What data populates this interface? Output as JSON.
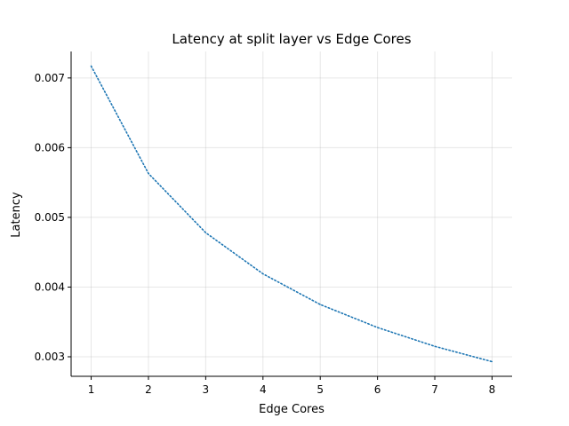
{
  "chart_data": {
    "type": "line",
    "title": "Latency at split layer vs Edge Cores",
    "xlabel": "Edge Cores",
    "ylabel": "Latency",
    "x": [
      1,
      2,
      3,
      4,
      5,
      6,
      7,
      8
    ],
    "series": [
      {
        "values": [
          0.00717,
          0.00563,
          0.00478,
          0.00419,
          0.00375,
          0.00342,
          0.00315,
          0.00293
        ],
        "color": "#1f77b4",
        "line_style": "dotted"
      }
    ],
    "xlim": [
      0.65,
      8.35
    ],
    "ylim": [
      0.00272,
      0.00738
    ],
    "x_ticks": [
      1,
      2,
      3,
      4,
      5,
      6,
      7,
      8
    ],
    "x_tick_labels": [
      "1",
      "2",
      "3",
      "4",
      "5",
      "6",
      "7",
      "8"
    ],
    "y_ticks": [
      0.003,
      0.004,
      0.005,
      0.006,
      0.007
    ],
    "y_tick_labels": [
      "0.003",
      "0.004",
      "0.005",
      "0.006",
      "0.007"
    ],
    "grid": true,
    "spines": "left-bottom"
  }
}
